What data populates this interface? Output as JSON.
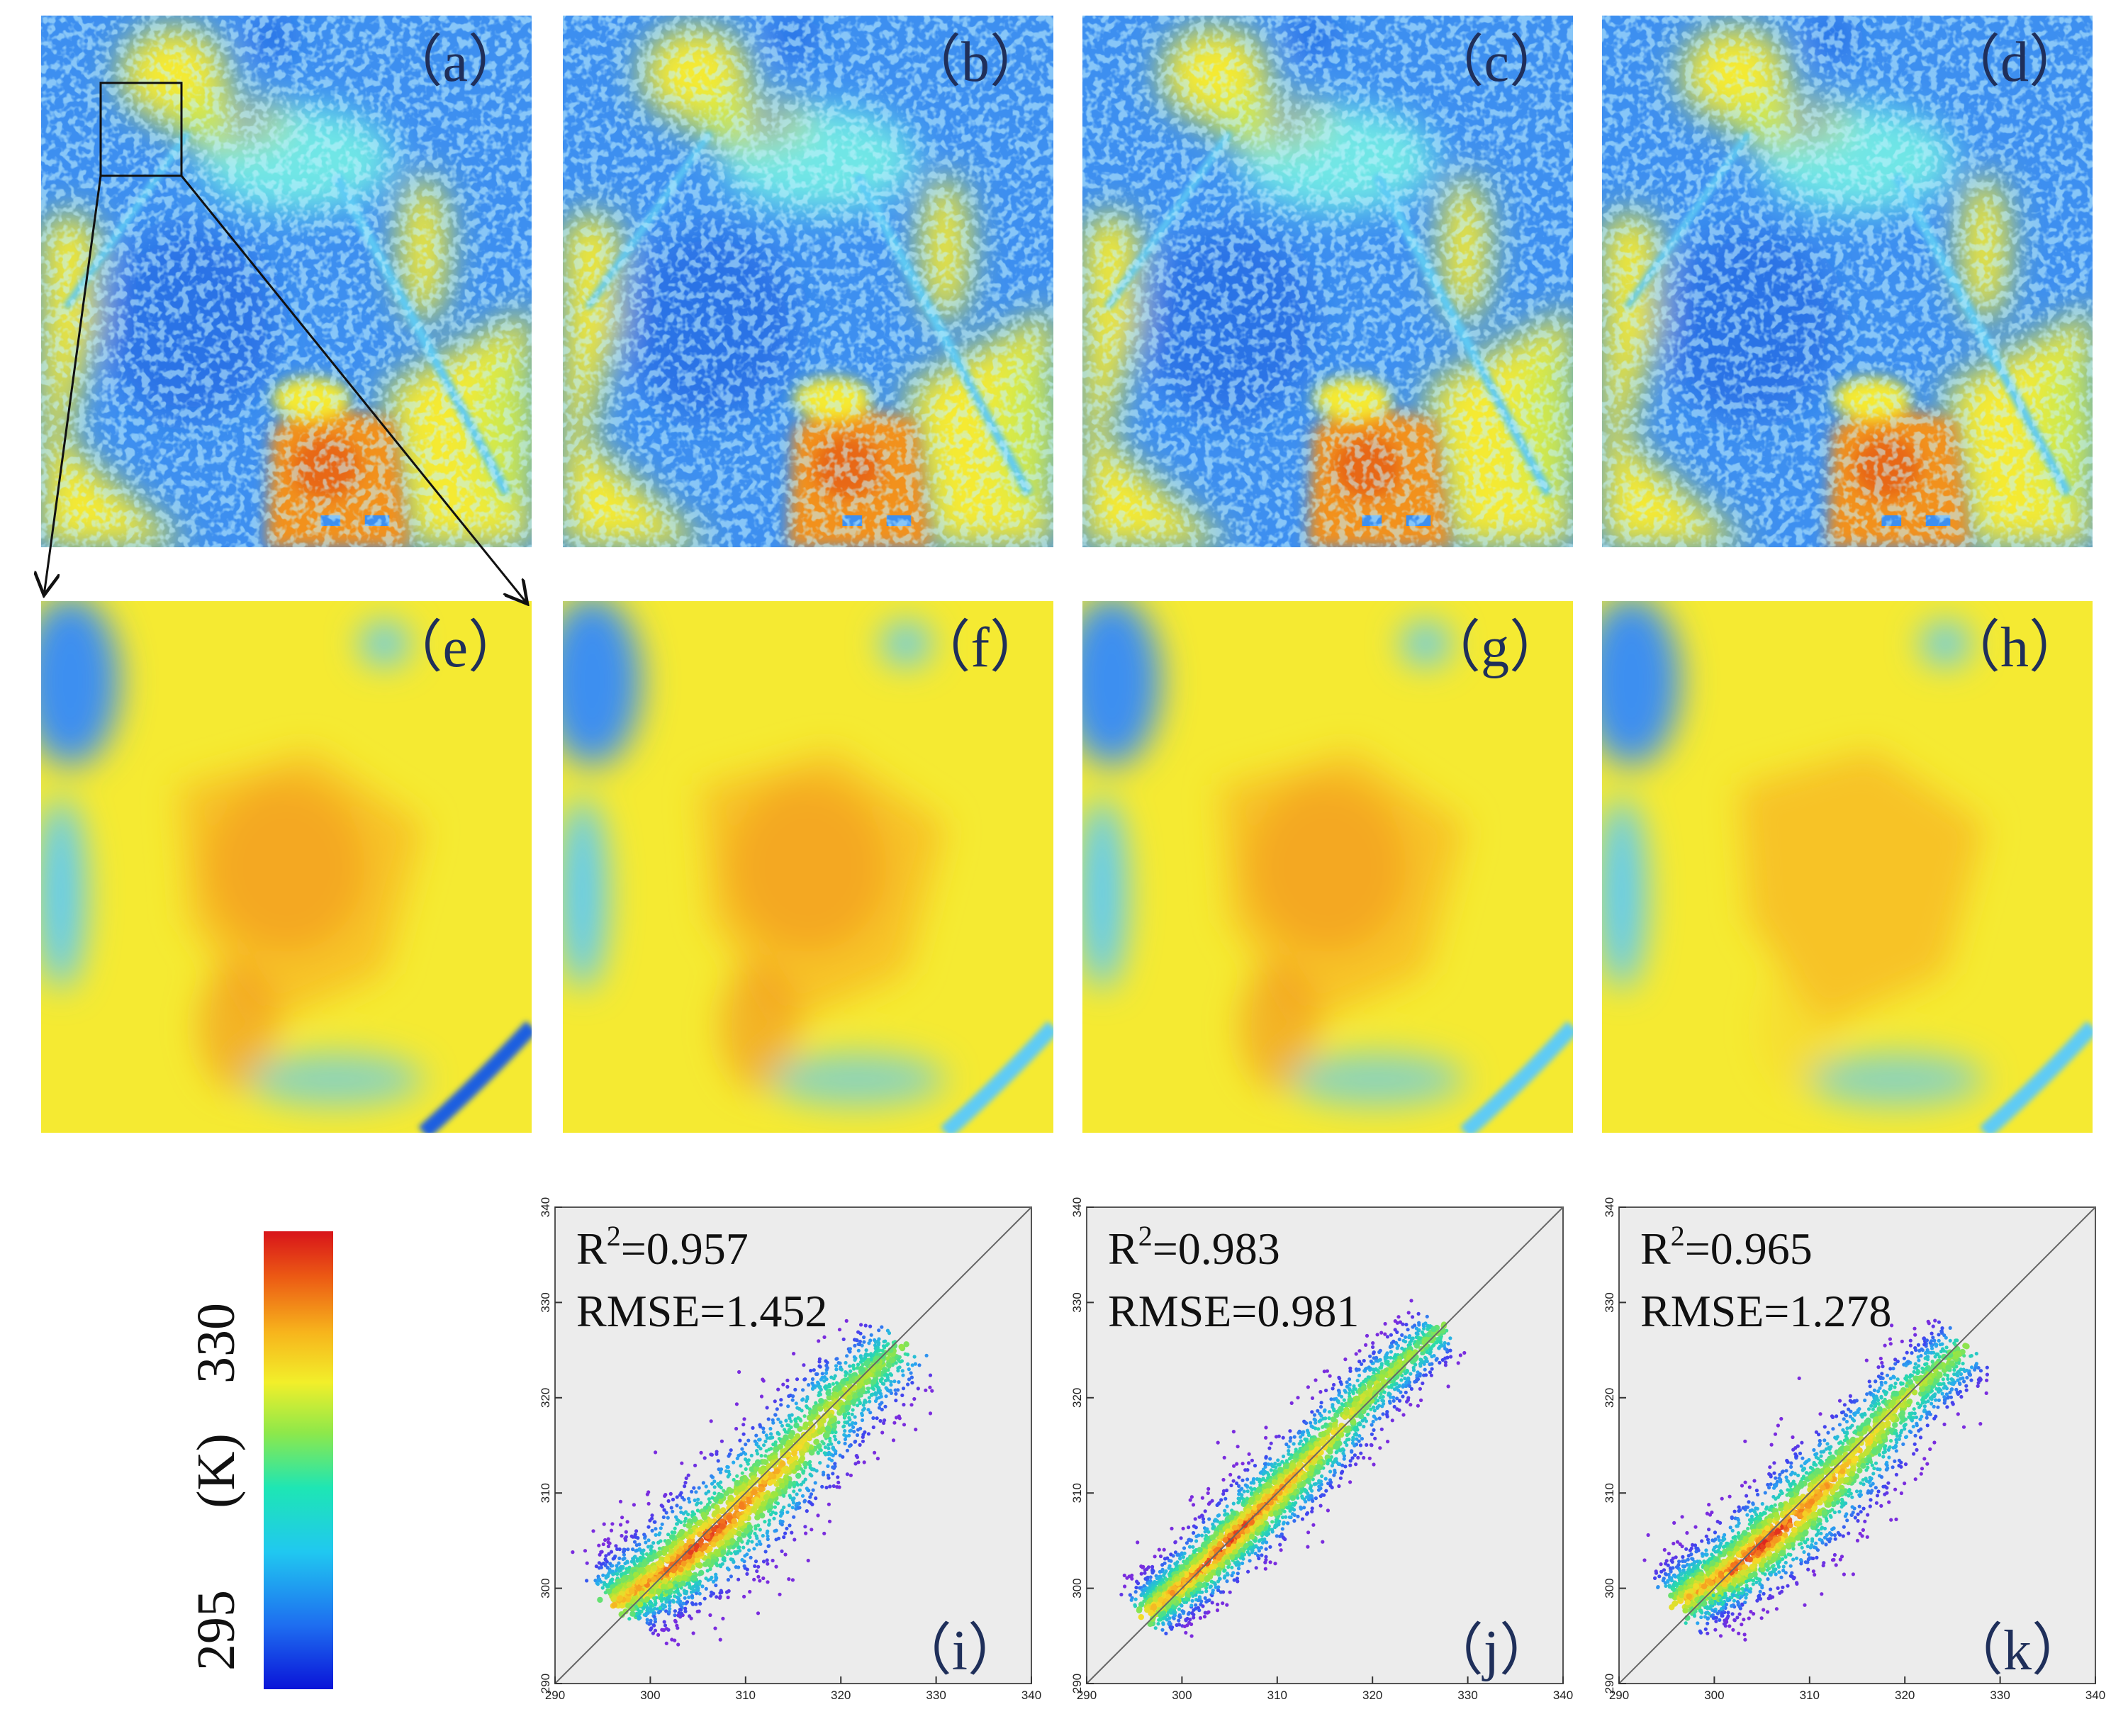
{
  "figure": {
    "maps": [
      {
        "id": "a",
        "label": "（a）",
        "kind": "overview",
        "has_inset_box": true
      },
      {
        "id": "b",
        "label": "（b）",
        "kind": "overview"
      },
      {
        "id": "c",
        "label": "（c）",
        "kind": "overview"
      },
      {
        "id": "d",
        "label": "（d）",
        "kind": "overview"
      },
      {
        "id": "e",
        "label": "（e）",
        "kind": "zoom"
      },
      {
        "id": "f",
        "label": "（f）",
        "kind": "zoom"
      },
      {
        "id": "g",
        "label": "（g）",
        "kind": "zoom"
      },
      {
        "id": "h",
        "label": "（h）",
        "kind": "zoom"
      }
    ],
    "colorbar": {
      "min": "295",
      "max": "330",
      "unit": "(K)",
      "colors": [
        "#0a14d8",
        "#1e6ef0",
        "#20c8f0",
        "#1ee6b4",
        "#8ee84a",
        "#f2ef2a",
        "#f7b41c",
        "#ec5a14",
        "#d8141a"
      ]
    },
    "map_palette": {
      "deep_blue": "#1d5fe0",
      "blue": "#3d8ff0",
      "light_blue": "#5ecbf5",
      "cyan": "#6fe6e6",
      "green_yellow": "#cde94e",
      "yellow": "#f5ea32",
      "orange_yellow": "#f7c327",
      "orange": "#f2911d",
      "red_orange": "#e86818"
    }
  },
  "chart_data": [
    {
      "type": "scatter",
      "panel": "（i）",
      "r2_text": "0.957",
      "rmse_text": "RMSE=1.452",
      "r2": 0.957,
      "rmse": 1.452,
      "xlim": [
        290,
        340
      ],
      "ylim": [
        290,
        340
      ],
      "xticks": [
        "290",
        "300",
        "310",
        "320",
        "330",
        "340"
      ],
      "yticks": [
        "290",
        "300",
        "310",
        "320",
        "330",
        "340"
      ],
      "one_to_one_line": true,
      "density_ridge": [
        [
          297,
          299
        ],
        [
          302,
          302
        ],
        [
          308,
          307
        ],
        [
          314,
          313
        ],
        [
          320,
          320
        ],
        [
          326,
          325
        ]
      ],
      "spread": 2.6
    },
    {
      "type": "scatter",
      "panel": "（j）",
      "r2_text": "0.983",
      "rmse_text": "RMSE=0.981",
      "r2": 0.983,
      "rmse": 0.981,
      "xlim": [
        290,
        340
      ],
      "ylim": [
        290,
        340
      ],
      "xticks": [
        "290",
        "300",
        "310",
        "320",
        "330",
        "340"
      ],
      "yticks": [
        "290",
        "300",
        "310",
        "320",
        "330",
        "340"
      ],
      "one_to_one_line": true,
      "density_ridge": [
        [
          297,
          298
        ],
        [
          302,
          302
        ],
        [
          308,
          308
        ],
        [
          314,
          314
        ],
        [
          320,
          321
        ],
        [
          327,
          327
        ]
      ],
      "spread": 1.8
    },
    {
      "type": "scatter",
      "panel": "（k）",
      "r2_text": "0.965",
      "rmse_text": "RMSE=1.278",
      "r2": 0.965,
      "rmse": 1.278,
      "xlim": [
        290,
        340
      ],
      "ylim": [
        290,
        340
      ],
      "xticks": [
        "290",
        "300",
        "310",
        "320",
        "330",
        "340"
      ],
      "yticks": [
        "290",
        "300",
        "310",
        "320",
        "330",
        "340"
      ],
      "one_to_one_line": true,
      "density_ridge": [
        [
          297,
          299
        ],
        [
          302,
          302
        ],
        [
          308,
          307
        ],
        [
          314,
          313
        ],
        [
          320,
          320
        ],
        [
          326,
          325
        ]
      ],
      "spread": 2.3
    }
  ]
}
